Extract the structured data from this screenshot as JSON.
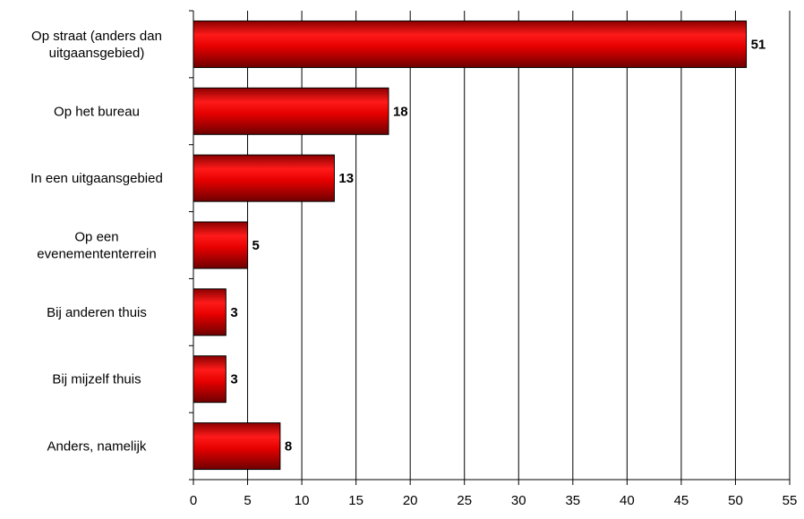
{
  "chart_data": {
    "type": "bar",
    "orientation": "horizontal",
    "categories": [
      [
        "Op straat (anders dan",
        "uitgaansgebied)"
      ],
      [
        "Op het bureau"
      ],
      [
        "In een uitgaansgebied"
      ],
      [
        "Op een",
        "evenemententerrein"
      ],
      [
        "Bij anderen thuis"
      ],
      [
        "Bij mijzelf thuis"
      ],
      [
        "Anders, namelijk"
      ]
    ],
    "values": [
      51,
      18,
      13,
      5,
      3,
      3,
      8
    ],
    "data_labels": [
      "51",
      "18",
      "13",
      "5",
      "3",
      "3",
      "8"
    ],
    "xlim": [
      0,
      55
    ],
    "xticks": [
      0,
      5,
      10,
      15,
      20,
      25,
      30,
      35,
      40,
      45,
      50,
      55
    ],
    "grid": "vertical",
    "bar_color": "#e00000",
    "bar_color_dark": "#7a0000",
    "bar_color_light": "#ff2020",
    "title": "",
    "xlabel": "",
    "ylabel": ""
  }
}
